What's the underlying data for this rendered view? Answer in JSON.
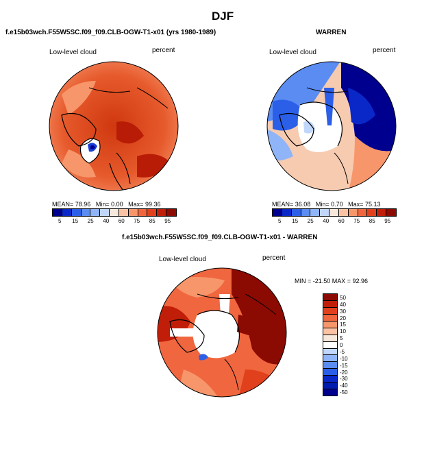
{
  "title": "DJF",
  "panel1": {
    "subtitle": "f.e15b03wch.F55W5SC.f09_f09.CLB-OGW-T1-x01 (yrs 1980-1989)",
    "field": "Low-level cloud",
    "units": "percent",
    "stats": {
      "mean_label": "MEAN=",
      "mean": "78.96",
      "min_label": "Min=",
      "min": "0.00",
      "max_label": "Max=",
      "max": "99.36"
    }
  },
  "panel2": {
    "subtitle": "WARREN",
    "field": "Low-level cloud",
    "units": "percent",
    "stats": {
      "mean_label": "MEAN=",
      "mean": "36.08",
      "min_label": "Min=",
      "min": "0.70",
      "max_label": "Max=",
      "max": "75.13"
    }
  },
  "panel3": {
    "subtitle": "f.e15b03wch.F55W5SC.f09_f09.CLB-OGW-T1-x01 - WARREN",
    "field": "Low-level cloud",
    "units": "percent",
    "minmax": "MIN = -21.50 MAX =  92.96"
  },
  "colorbar_abs": {
    "tick_labels": [
      "5",
      "15",
      "25",
      "40",
      "60",
      "75",
      "85",
      "95"
    ],
    "colors": [
      "#00008f",
      "#0a28c8",
      "#2c5fe8",
      "#5a8cf2",
      "#8fb4f7",
      "#c0d6fb",
      "#f7e8dc",
      "#fbc3a4",
      "#f7966b",
      "#f0673f",
      "#e0401c",
      "#c01e08",
      "#8b0a02"
    ]
  },
  "colorbar_diff": {
    "tick_labels": [
      "50",
      "40",
      "30",
      "20",
      "15",
      "10",
      "5",
      "0",
      "-5",
      "-10",
      "-15",
      "-20",
      "-30",
      "-40",
      "-50"
    ],
    "colors": [
      "#8b0a02",
      "#c01e08",
      "#e0401c",
      "#f0673f",
      "#f7966b",
      "#fbc3a4",
      "#f7e8dc",
      "#ffffff",
      "#c0d6fb",
      "#8fb4f7",
      "#5a8cf2",
      "#2c5fe8",
      "#0a28c8",
      "#001cae",
      "#00008f"
    ]
  }
}
